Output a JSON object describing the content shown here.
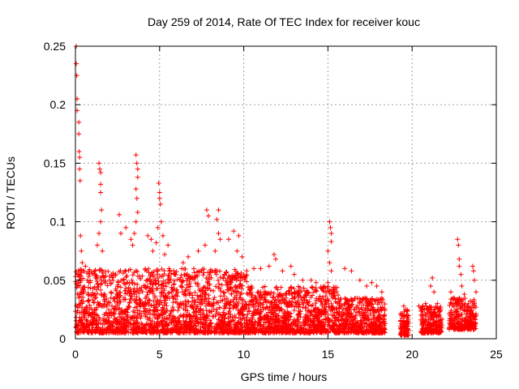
{
  "chart_data": {
    "type": "scatter",
    "title": "Day 259 of 2014, Rate Of TEC Index for receiver kouc",
    "xlabel": "GPS time / hours",
    "ylabel": "ROTI / TECUs",
    "xlim": [
      0,
      25
    ],
    "ylim": [
      0,
      0.25
    ],
    "xticks": [
      0,
      5,
      10,
      15,
      20,
      25
    ],
    "yticks": [
      0,
      0.05,
      0.1,
      0.15,
      0.2,
      0.25
    ],
    "xtick_labels": [
      "0",
      "5",
      "10",
      "15",
      "20",
      "25"
    ],
    "ytick_labels": [
      "0",
      "0.05",
      "0.1",
      "0.15",
      "0.2",
      "0.25"
    ],
    "grid": true,
    "marker": "+",
    "color": "#ff0000",
    "series": [
      {
        "name": "ROTI",
        "points": [
          [
            0.05,
            0.25
          ],
          [
            0.05,
            0.235
          ],
          [
            0.08,
            0.225
          ],
          [
            0.1,
            0.205
          ],
          [
            0.1,
            0.195
          ],
          [
            0.2,
            0.185
          ],
          [
            0.2,
            0.175
          ],
          [
            0.22,
            0.16
          ],
          [
            0.25,
            0.155
          ],
          [
            0.25,
            0.145
          ],
          [
            0.28,
            0.135
          ],
          [
            0.3,
            0.088
          ],
          [
            0.35,
            0.075
          ],
          [
            0.4,
            0.065
          ],
          [
            0.1,
            0.055
          ],
          [
            0.15,
            0.045
          ],
          [
            0.2,
            0.035
          ],
          [
            0.3,
            0.03
          ],
          [
            0.5,
            0.04
          ],
          [
            0.6,
            0.062
          ],
          [
            0.7,
            0.05
          ],
          [
            1.4,
            0.15
          ],
          [
            1.45,
            0.145
          ],
          [
            1.5,
            0.142
          ],
          [
            1.5,
            0.132
          ],
          [
            1.5,
            0.125
          ],
          [
            1.55,
            0.11
          ],
          [
            1.5,
            0.1
          ],
          [
            1.4,
            0.09
          ],
          [
            1.3,
            0.08
          ],
          [
            1.6,
            0.075
          ],
          [
            2.6,
            0.106
          ],
          [
            2.7,
            0.09
          ],
          [
            3.0,
            0.095
          ],
          [
            3.3,
            0.085
          ],
          [
            3.4,
            0.08
          ],
          [
            3.6,
            0.157
          ],
          [
            3.65,
            0.15
          ],
          [
            3.7,
            0.145
          ],
          [
            3.7,
            0.138
          ],
          [
            3.6,
            0.128
          ],
          [
            3.65,
            0.12
          ],
          [
            3.7,
            0.108
          ],
          [
            3.6,
            0.1
          ],
          [
            3.5,
            0.09
          ],
          [
            4.3,
            0.088
          ],
          [
            4.5,
            0.085
          ],
          [
            4.6,
            0.075
          ],
          [
            4.8,
            0.082
          ],
          [
            4.95,
            0.133
          ],
          [
            5.0,
            0.125
          ],
          [
            5.0,
            0.12
          ],
          [
            5.05,
            0.115
          ],
          [
            5.1,
            0.1
          ],
          [
            4.9,
            0.095
          ],
          [
            5.2,
            0.088
          ],
          [
            5.5,
            0.08
          ],
          [
            5.3,
            0.072
          ],
          [
            6.4,
            0.065
          ],
          [
            6.7,
            0.07
          ],
          [
            7.3,
            0.075
          ],
          [
            7.7,
            0.08
          ],
          [
            7.8,
            0.11
          ],
          [
            7.9,
            0.105
          ],
          [
            8.4,
            0.102
          ],
          [
            8.5,
            0.11
          ],
          [
            8.5,
            0.09
          ],
          [
            8.6,
            0.085
          ],
          [
            8.3,
            0.075
          ],
          [
            9.1,
            0.085
          ],
          [
            9.4,
            0.092
          ],
          [
            9.7,
            0.088
          ],
          [
            9.6,
            0.075
          ],
          [
            9.9,
            0.07
          ],
          [
            10.6,
            0.06
          ],
          [
            11.0,
            0.06
          ],
          [
            11.5,
            0.062
          ],
          [
            11.8,
            0.072
          ],
          [
            11.9,
            0.068
          ],
          [
            12.3,
            0.058
          ],
          [
            12.8,
            0.062
          ],
          [
            13.0,
            0.055
          ],
          [
            13.5,
            0.05
          ],
          [
            14.0,
            0.05
          ],
          [
            14.3,
            0.048
          ],
          [
            15.1,
            0.1
          ],
          [
            15.15,
            0.095
          ],
          [
            15.2,
            0.09
          ],
          [
            15.2,
            0.083
          ],
          [
            15.0,
            0.075
          ],
          [
            15.1,
            0.065
          ],
          [
            15.2,
            0.058
          ],
          [
            15.0,
            0.048
          ],
          [
            16.0,
            0.06
          ],
          [
            16.4,
            0.058
          ],
          [
            16.9,
            0.05
          ],
          [
            17.3,
            0.045
          ],
          [
            17.6,
            0.048
          ],
          [
            17.9,
            0.045
          ],
          [
            18.2,
            0.04
          ],
          [
            19.5,
            0.028
          ],
          [
            19.6,
            0.025
          ],
          [
            19.7,
            0.02
          ],
          [
            19.5,
            0.015
          ],
          [
            19.6,
            0.012
          ],
          [
            19.7,
            0.008
          ],
          [
            20.4,
            0.028
          ],
          [
            20.6,
            0.025
          ],
          [
            20.8,
            0.03
          ],
          [
            21.1,
            0.045
          ],
          [
            21.2,
            0.052
          ],
          [
            21.3,
            0.04
          ],
          [
            21.5,
            0.03
          ],
          [
            21.6,
            0.02
          ],
          [
            21.7,
            0.01
          ],
          [
            22.3,
            0.04
          ],
          [
            22.5,
            0.035
          ],
          [
            22.7,
            0.085
          ],
          [
            22.75,
            0.08
          ],
          [
            22.8,
            0.068
          ],
          [
            22.8,
            0.062
          ],
          [
            22.9,
            0.055
          ],
          [
            22.95,
            0.045
          ],
          [
            23.1,
            0.038
          ],
          [
            23.6,
            0.062
          ],
          [
            23.65,
            0.058
          ],
          [
            23.7,
            0.05
          ],
          [
            23.8,
            0.04
          ],
          [
            23.7,
            0.03
          ],
          [
            23.8,
            0.02
          ],
          [
            23.7,
            0.012
          ]
        ],
        "dense_bands": [
          {
            "x": [
              0,
              10.2
            ],
            "y": [
              0.005,
              0.06
            ]
          },
          {
            "x": [
              10.2,
              15.6
            ],
            "y": [
              0.005,
              0.045
            ]
          },
          {
            "x": [
              15.6,
              18.4
            ],
            "y": [
              0.005,
              0.035
            ]
          },
          {
            "x": [
              19.3,
              19.8
            ],
            "y": [
              0.003,
              0.025
            ]
          },
          {
            "x": [
              20.5,
              21.8
            ],
            "y": [
              0.005,
              0.028
            ]
          },
          {
            "x": [
              22.2,
              23.8
            ],
            "y": [
              0.008,
              0.035
            ]
          }
        ]
      }
    ]
  }
}
